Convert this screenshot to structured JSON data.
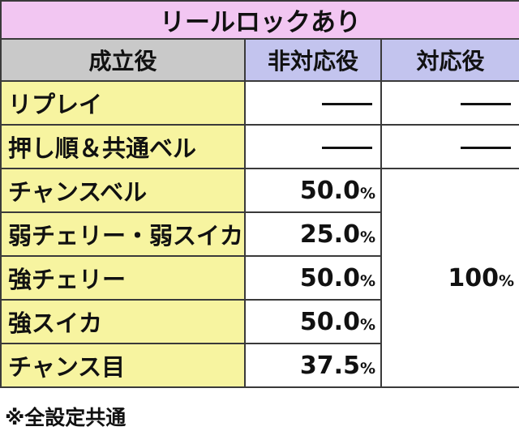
{
  "title": "リールロックあり",
  "headers": {
    "role": "成立役",
    "non_corresponding": "非対応役",
    "corresponding": "対応役"
  },
  "rows": [
    {
      "label": "リプレイ",
      "non": "",
      "cor": ""
    },
    {
      "label": "押し順＆共通ベル",
      "non": "",
      "cor": ""
    },
    {
      "label": "チャンスベル",
      "non": "50.0",
      "cor": ""
    },
    {
      "label": "弱チェリー・弱スイカ",
      "non": "25.0",
      "cor": ""
    },
    {
      "label": "強チェリー",
      "non": "50.0",
      "cor": ""
    },
    {
      "label": "強スイカ",
      "non": "50.0",
      "cor": ""
    },
    {
      "label": "チャンス目",
      "non": "37.5",
      "cor": ""
    }
  ],
  "merged_corresponding": "100",
  "percent_sign": "%",
  "footnote": "※全設定共通"
}
